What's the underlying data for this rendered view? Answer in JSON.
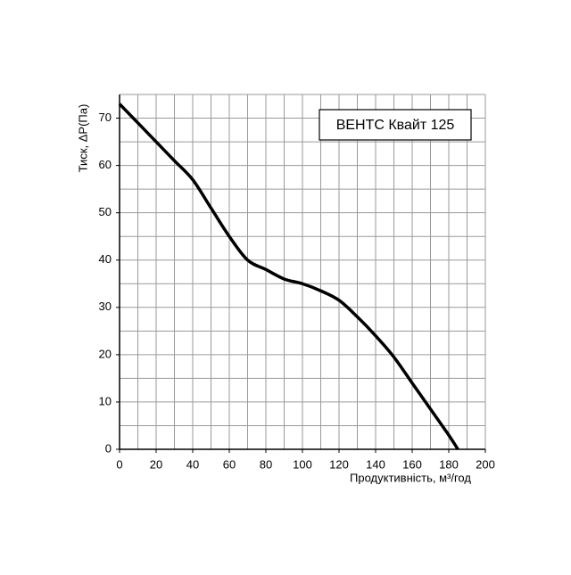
{
  "chart_data": {
    "type": "line",
    "title": "ВЕНТС Квайт 125",
    "x_label": "Продуктивність, м³/год",
    "y_label": "Тиск, ΔР(Па)",
    "x": [
      0,
      10,
      20,
      30,
      40,
      50,
      60,
      70,
      80,
      90,
      100,
      110,
      120,
      130,
      140,
      150,
      160,
      170,
      180,
      185
    ],
    "series": [
      {
        "name": "ВЕНТС Квайт 125",
        "color": "#000000",
        "values": [
          73,
          69,
          65,
          61,
          57,
          51,
          45,
          40,
          38,
          36,
          35,
          33.5,
          31.5,
          28,
          24,
          19.5,
          14,
          8.5,
          3,
          0
        ]
      }
    ],
    "xlim": [
      0,
      200
    ],
    "ylim": [
      0,
      75
    ],
    "xticks": [
      0,
      20,
      40,
      60,
      80,
      100,
      120,
      140,
      160,
      180,
      200
    ],
    "yticks": [
      0,
      10,
      20,
      30,
      40,
      50,
      60,
      70
    ],
    "xgrid": [
      10,
      30,
      50,
      70,
      90,
      110,
      130,
      150,
      170,
      190
    ],
    "ygrid": [
      5,
      15,
      25,
      35,
      45,
      55,
      65,
      75
    ],
    "grid": true
  }
}
